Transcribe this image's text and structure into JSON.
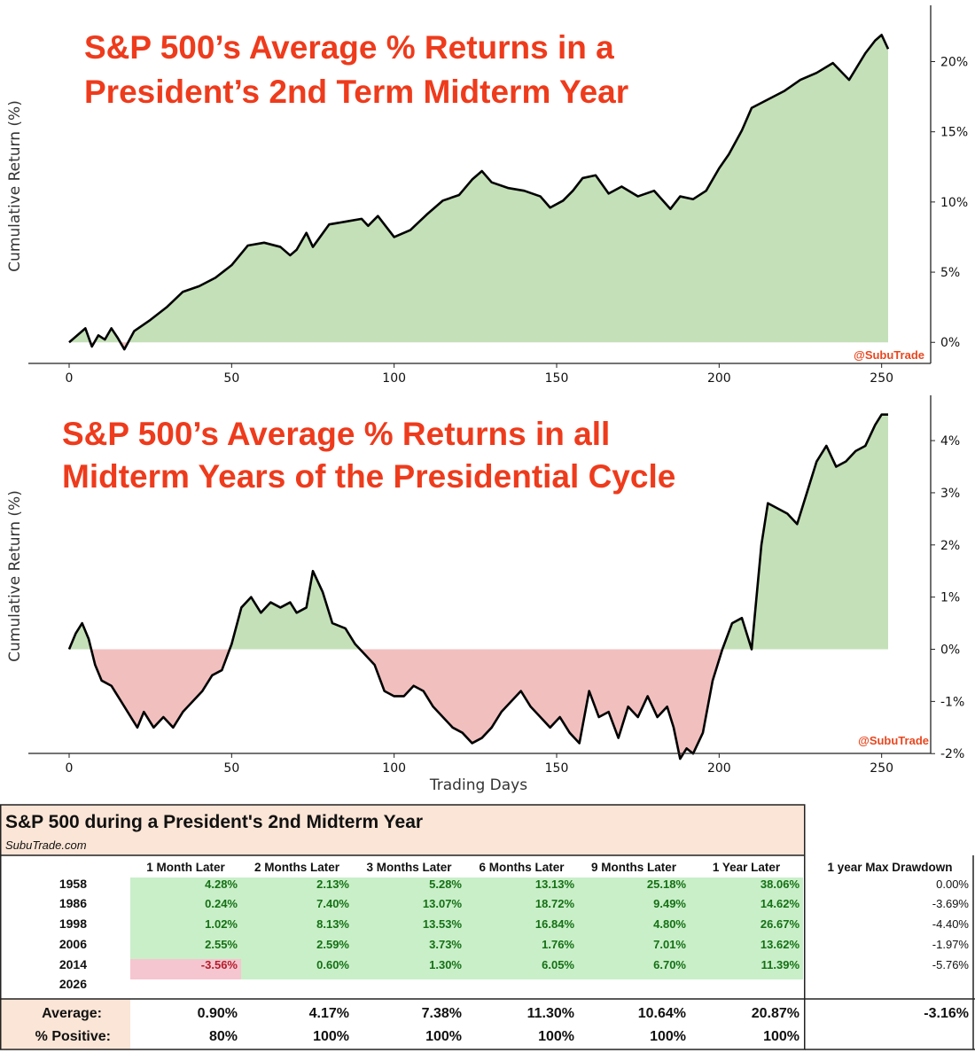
{
  "chart_data": [
    {
      "type": "area",
      "title": "S&P 500’s Average % Returns in a President’s 2nd Term Midterm Year",
      "title_lines": [
        "S&P 500’s Average % Returns in a",
        "President’s 2nd Term Midterm Year"
      ],
      "ylabel": "Cumulative Return (%)",
      "xlabel": "",
      "xlim": [
        0,
        252
      ],
      "ylim": [
        -1.5,
        23
      ],
      "x_ticks": [
        0,
        50,
        100,
        150,
        200,
        250
      ],
      "y_ticks": [
        0,
        5,
        10,
        15,
        20
      ],
      "y_tick_labels": [
        "0%",
        "5%",
        "10%",
        "15%",
        "20%"
      ],
      "watermark": "@SubuTrade",
      "colors": {
        "positive_fill": "#c4e0b8",
        "negative_fill": "#f2bfbf",
        "line": "#000000"
      },
      "series": [
        {
          "x": [
            0,
            3,
            5,
            7,
            9,
            11,
            13,
            15,
            17,
            20,
            25,
            30,
            35,
            40,
            45,
            50,
            55,
            60,
            65,
            68,
            70,
            73,
            75,
            80,
            85,
            90,
            92,
            95,
            100,
            105,
            110,
            115,
            120,
            124,
            127,
            130,
            135,
            140,
            145,
            148,
            152,
            155,
            158,
            162,
            166,
            170,
            175,
            180,
            185,
            188,
            192,
            196,
            200,
            203,
            207,
            210,
            215,
            220,
            225,
            230,
            235,
            240,
            245,
            248,
            250,
            252
          ],
          "y": [
            0,
            0.6,
            1.0,
            -0.3,
            0.5,
            0.2,
            1.0,
            0.3,
            -0.5,
            0.8,
            1.6,
            2.5,
            3.6,
            4.0,
            4.6,
            5.5,
            6.9,
            7.1,
            6.8,
            6.2,
            6.6,
            7.8,
            6.8,
            8.4,
            8.6,
            8.8,
            8.3,
            9.0,
            7.5,
            8.0,
            9.1,
            10.1,
            10.5,
            11.6,
            12.2,
            11.4,
            11.0,
            10.8,
            10.4,
            9.6,
            10.1,
            10.8,
            11.7,
            11.9,
            10.6,
            11.1,
            10.4,
            10.8,
            9.5,
            10.4,
            10.2,
            10.8,
            12.4,
            13.4,
            15.1,
            16.7,
            17.3,
            17.9,
            18.7,
            19.2,
            19.9,
            18.7,
            20.6,
            21.5,
            21.9,
            20.9
          ]
        }
      ]
    },
    {
      "type": "area",
      "title": "S&P 500’s Average % Returns in all Midterm Years of the Presidential Cycle",
      "title_lines": [
        "S&P 500’s Average % Returns in all",
        "Midterm Years of the Presidential Cycle"
      ],
      "ylabel": "Cumulative Return (%)",
      "xlabel": "Trading Days",
      "xlim": [
        0,
        252
      ],
      "ylim": [
        -2.2,
        4.8
      ],
      "x_ticks": [
        0,
        50,
        100,
        150,
        200,
        250
      ],
      "y_ticks": [
        -2,
        -1,
        0,
        1,
        2,
        3,
        4
      ],
      "y_tick_labels": [
        "-2%",
        "-1%",
        "0%",
        "1%",
        "2%",
        "3%",
        "4%"
      ],
      "watermark": "@SubuTrade",
      "colors": {
        "positive_fill": "#c4e0b8",
        "negative_fill": "#f2bfbf",
        "line": "#000000"
      },
      "series": [
        {
          "x": [
            0,
            2,
            4,
            6,
            8,
            10,
            13,
            16,
            19,
            21,
            23,
            26,
            29,
            32,
            35,
            38,
            41,
            44,
            47,
            50,
            53,
            56,
            59,
            62,
            65,
            68,
            70,
            73,
            75,
            78,
            81,
            85,
            88,
            91,
            94,
            97,
            100,
            103,
            106,
            109,
            112,
            115,
            118,
            121,
            124,
            127,
            130,
            133,
            136,
            139,
            142,
            145,
            148,
            151,
            154,
            157,
            160,
            163,
            166,
            169,
            172,
            175,
            178,
            181,
            184,
            186,
            188,
            190,
            192,
            195,
            198,
            201,
            204,
            207,
            210,
            213,
            215,
            218,
            221,
            224,
            227,
            230,
            233,
            236,
            239,
            242,
            245,
            248,
            250,
            252
          ],
          "y": [
            0,
            0.3,
            0.5,
            0.2,
            -0.3,
            -0.6,
            -0.7,
            -1.0,
            -1.3,
            -1.5,
            -1.2,
            -1.5,
            -1.3,
            -1.5,
            -1.2,
            -1.0,
            -0.8,
            -0.5,
            -0.4,
            0.1,
            0.8,
            1.0,
            0.7,
            0.9,
            0.8,
            0.9,
            0.7,
            0.8,
            1.5,
            1.1,
            0.5,
            0.4,
            0.1,
            -0.1,
            -0.3,
            -0.8,
            -0.9,
            -0.9,
            -0.7,
            -0.8,
            -1.1,
            -1.3,
            -1.5,
            -1.6,
            -1.8,
            -1.7,
            -1.5,
            -1.2,
            -1.0,
            -0.8,
            -1.1,
            -1.3,
            -1.5,
            -1.3,
            -1.6,
            -1.8,
            -0.8,
            -1.3,
            -1.2,
            -1.7,
            -1.1,
            -1.3,
            -0.9,
            -1.3,
            -1.1,
            -1.5,
            -2.1,
            -1.9,
            -2.0,
            -1.6,
            -0.6,
            0.0,
            0.5,
            0.6,
            0.0,
            2.0,
            2.8,
            2.7,
            2.6,
            2.4,
            3.0,
            3.6,
            3.9,
            3.5,
            3.6,
            3.8,
            3.9,
            4.3,
            4.5,
            4.5
          ]
        }
      ]
    },
    {
      "type": "table",
      "title": "S&P 500 during a President's 2nd Midterm Year",
      "subtitle": "SubuTrade.com",
      "columns": [
        "1 Month Later",
        "2 Months Later",
        "3 Months Later",
        "6 Months Later",
        "9 Months Later",
        "1 Year Later",
        "1 year Max Drawdown"
      ],
      "rows": [
        {
          "year": "1958",
          "values": [
            "4.28%",
            "2.13%",
            "5.28%",
            "13.13%",
            "25.18%",
            "38.06%"
          ],
          "drawdown": "0.00%"
        },
        {
          "year": "1986",
          "values": [
            "0.24%",
            "7.40%",
            "13.07%",
            "18.72%",
            "9.49%",
            "14.62%"
          ],
          "drawdown": "-3.69%"
        },
        {
          "year": "1998",
          "values": [
            "1.02%",
            "8.13%",
            "13.53%",
            "16.84%",
            "4.80%",
            "26.67%"
          ],
          "drawdown": "-4.40%"
        },
        {
          "year": "2006",
          "values": [
            "2.55%",
            "2.59%",
            "3.73%",
            "1.76%",
            "7.01%",
            "13.62%"
          ],
          "drawdown": "-1.97%"
        },
        {
          "year": "2014",
          "values": [
            "-3.56%",
            "0.60%",
            "1.30%",
            "6.05%",
            "6.70%",
            "11.39%"
          ],
          "drawdown": "-5.76%"
        },
        {
          "year": "2026",
          "values": [
            "",
            "",
            "",
            "",
            "",
            ""
          ],
          "drawdown": ""
        }
      ],
      "average_label": "Average:",
      "average": [
        "0.90%",
        "4.17%",
        "7.38%",
        "11.30%",
        "10.64%",
        "20.87%",
        "-3.16%"
      ],
      "positive_label": "% Positive:",
      "positive": [
        "80%",
        "100%",
        "100%",
        "100%",
        "100%",
        "100%"
      ],
      "colors": {
        "pos_cell": "#c9efc9",
        "neg_cell": "#f5c6cf",
        "pos_text": "#157015",
        "neg_text": "#b51c2b",
        "header_bg": "#fbe5d6"
      }
    }
  ]
}
